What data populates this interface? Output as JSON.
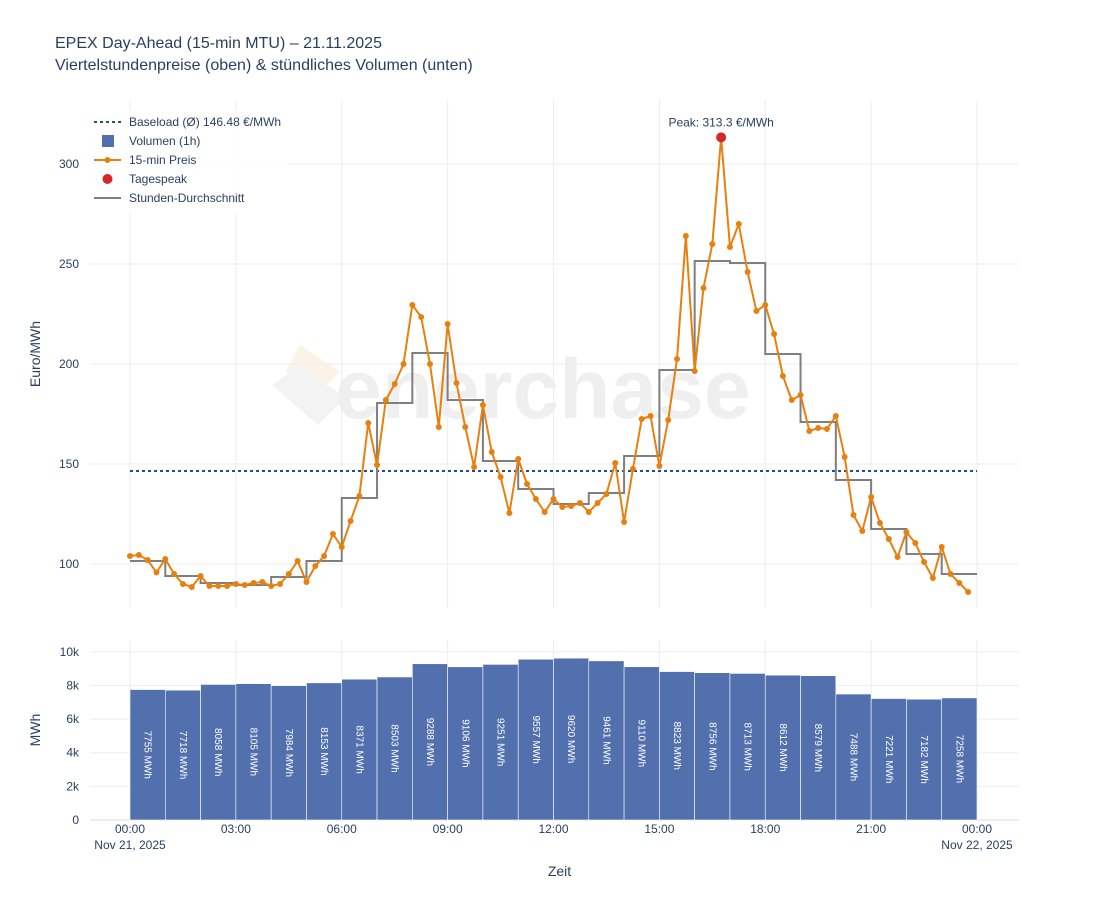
{
  "title": "EPEX Day-Ahead (15-min MTU) – 21.11.2025",
  "subtitle": "Viertelstundenpreise (oben) & stündliches Volumen (unten)",
  "watermark": "enerchase",
  "colors": {
    "price": "#e8800f",
    "hourly_avg": "#7f7f7f",
    "baseload": "#1f4e8c",
    "volume": "#5170ad",
    "peak": "#d62728",
    "grid": "#ebedf0",
    "axis_text": "#2a3f5f"
  },
  "chart_data": [
    {
      "type": "line",
      "name": "price-chart",
      "ylabel": "Euro/MWh",
      "ylim": [
        78,
        332
      ],
      "yticks": [
        100,
        150,
        200,
        250,
        300
      ],
      "grid": true,
      "legend_placement": "top-left",
      "legend": [
        "Baseload (Ø) 146.48 €/MWh",
        "Volumen (1h)",
        "15-min Preis",
        "Tagespeak",
        "Stunden-Durchschnitt"
      ],
      "baseload": 146.48,
      "peak": {
        "hour": 16.75,
        "value": 313.3,
        "label": "Peak: 313.3 €/MWh"
      },
      "series": [
        {
          "name": "15-min Preis",
          "interval_hours": 0.25,
          "values": [
            104,
            104.5,
            102,
            95.8,
            102.5,
            95,
            90,
            88.5,
            94,
            89,
            89,
            89,
            90,
            89.5,
            90.5,
            91,
            89,
            90,
            95,
            101.5,
            91,
            99,
            104,
            115,
            108.5,
            121.5,
            134,
            170.5,
            149.5,
            182,
            190,
            200,
            229.5,
            223.5,
            200,
            168.5,
            220,
            190.5,
            168.5,
            148.5,
            179.5,
            156,
            143.5,
            125.5,
            152.5,
            140,
            132.5,
            126,
            132.5,
            128.5,
            129,
            130.5,
            126,
            130.5,
            135,
            150.5,
            121,
            147.5,
            172.5,
            174,
            149,
            172,
            202.5,
            264,
            196.5,
            238,
            260,
            313.3,
            258.5,
            270,
            246,
            226.5,
            229.5,
            215,
            194,
            182,
            184.5,
            166.5,
            168,
            167.5,
            174,
            153.5,
            124.5,
            116.5,
            133.5,
            120.5,
            112.5,
            103.5,
            116,
            110.5,
            101,
            93,
            108.5,
            95,
            90.5,
            86
          ]
        },
        {
          "name": "Stunden-Durchschnitt",
          "values": [
            101.5,
            94,
            90.5,
            89.5,
            93.5,
            101.5,
            133,
            180.5,
            205.5,
            182,
            151.5,
            137.5,
            130,
            135.5,
            154,
            197,
            251.5,
            250.5,
            205,
            171,
            142,
            117.5,
            105,
            95
          ]
        }
      ]
    },
    {
      "type": "bar",
      "name": "volume-chart",
      "ylabel": "MWh",
      "xlabel": "Zeit",
      "ylim": [
        0,
        10700
      ],
      "yticks": [
        0,
        2000,
        4000,
        6000,
        8000,
        10000
      ],
      "ytick_labels": [
        "0",
        "2k",
        "4k",
        "6k",
        "8k",
        "10k"
      ],
      "xticks_hours": [
        0,
        3,
        6,
        9,
        12,
        15,
        18,
        21,
        24
      ],
      "xtick_labels": [
        "00:00",
        "03:00",
        "06:00",
        "09:00",
        "12:00",
        "15:00",
        "18:00",
        "21:00",
        "00:00"
      ],
      "xtick_dates": [
        {
          "hour": 0,
          "label": "Nov 21, 2025"
        },
        {
          "hour": 24,
          "label": "Nov 22, 2025"
        }
      ],
      "series": [
        {
          "name": "Volumen (1h)",
          "values": [
            7755,
            7718,
            8058,
            8105,
            7984,
            8153,
            8371,
            8503,
            9288,
            9106,
            9251,
            9557,
            9620,
            9461,
            9110,
            8823,
            8756,
            8713,
            8612,
            8579,
            7488,
            7221,
            7182,
            7258
          ],
          "labels": [
            "7755 MWh",
            "7718 MWh",
            "8058 MWh",
            "8105 MWh",
            "7984 MWh",
            "8153 MWh",
            "8371 MWh",
            "8503 MWh",
            "9288 MWh",
            "9106 MWh",
            "9251 MWh",
            "9557 MWh",
            "9620 MWh",
            "9461 MWh",
            "9110 MWh",
            "8823 MWh",
            "8756 MWh",
            "8713 MWh",
            "8612 MWh",
            "8579 MWh",
            "7488 MWh",
            "7221 MWh",
            "7182 MWh",
            "7258 MWh"
          ]
        }
      ]
    }
  ]
}
